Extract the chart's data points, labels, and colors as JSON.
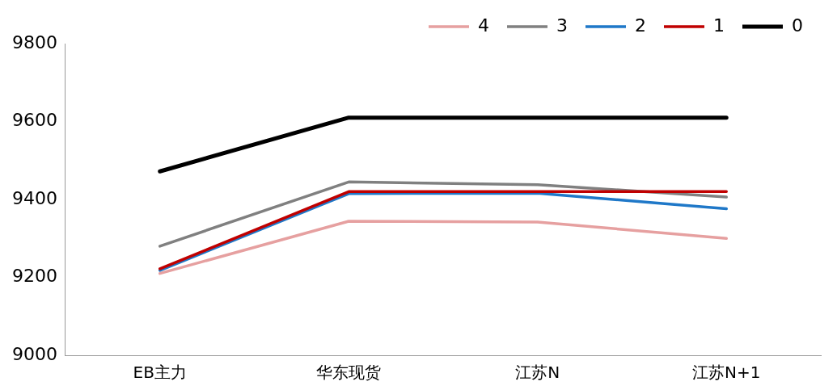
{
  "chart_data": {
    "type": "line",
    "categories": [
      "EB主力",
      "华东现货",
      "江苏N",
      "江苏N+1"
    ],
    "series": [
      {
        "name": "4",
        "color": "#e6a0a0",
        "values": [
          9210,
          9344,
          9342,
          9300
        ]
      },
      {
        "name": "3",
        "color": "#808080",
        "values": [
          9280,
          9445,
          9438,
          9406
        ]
      },
      {
        "name": "2",
        "color": "#1f78c8",
        "values": [
          9218,
          9415,
          9416,
          9376
        ]
      },
      {
        "name": "1",
        "color": "#c00000",
        "values": [
          9222,
          9420,
          9420,
          9420
        ]
      },
      {
        "name": "0",
        "color": "#000000",
        "values": [
          9472,
          9610,
          9610,
          9610
        ]
      }
    ],
    "ylim": [
      9000,
      9800
    ],
    "yticks": [
      9000,
      9200,
      9400,
      9600,
      9800
    ],
    "grid": false,
    "legend": "top",
    "marker": "none",
    "line_style": "solid"
  }
}
